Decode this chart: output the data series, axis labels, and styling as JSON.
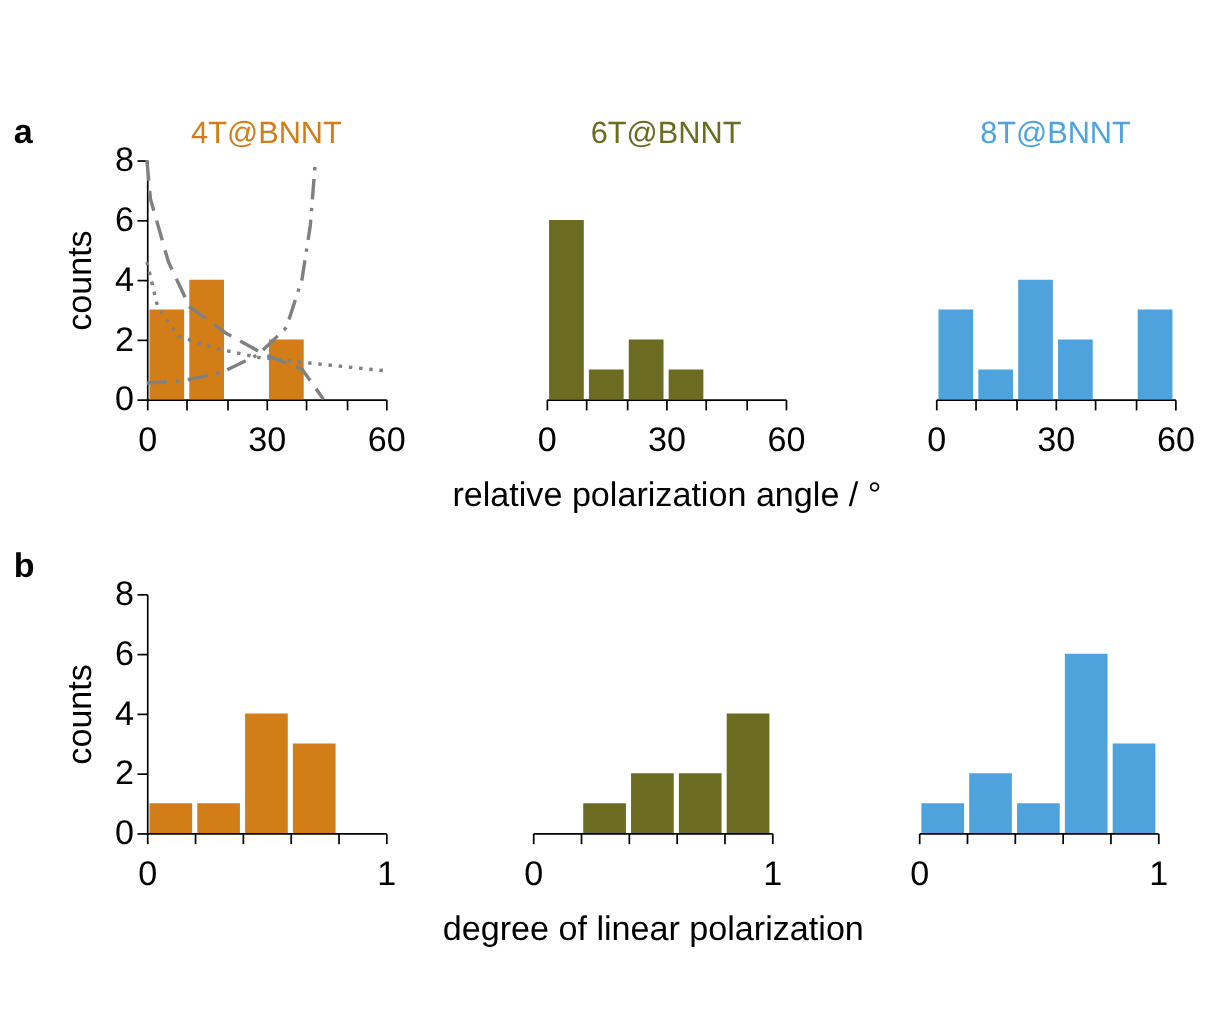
{
  "chart_data": [
    {
      "type": "histogram",
      "title": "4T@BNNT",
      "ylabel": "counts",
      "annotations": [
        "a"
      ],
      "bins": [
        0,
        10,
        20,
        30,
        40,
        50,
        60
      ],
      "xlim": [
        0,
        60
      ],
      "xticks": [
        0,
        {
          "value": 10,
          "label": null
        },
        {
          "value": 20,
          "label": null
        },
        30,
        {
          "value": 40,
          "label": null
        },
        {
          "value": 50,
          "label": null
        },
        60
      ],
      "ylim": [
        0,
        8
      ],
      "yticks": [
        0,
        2,
        4,
        6,
        8
      ],
      "grid": false,
      "legend": false,
      "series": [
        {
          "type": "histogram",
          "color": "#d37d19",
          "values": [
            3,
            4,
            0,
            2,
            0,
            0
          ]
        },
        {
          "type": "line",
          "color": "#808080",
          "line_style": "dashed",
          "x": [
            0,
            0.9,
            5.4,
            10.7,
            20,
            29.5,
            39,
            44.3
          ],
          "values": [
            8,
            6.7,
            4.6,
            3.1,
            2.2,
            1.5,
            1.0,
            0
          ]
        },
        {
          "type": "line",
          "color": "#808080",
          "line_style": "dotted",
          "x": [
            0,
            2.7,
            8,
            17.4,
            28,
            41.6,
            60
          ],
          "values": [
            4.6,
            3.1,
            2.1,
            1.7,
            1.4,
            1.2,
            0.95
          ]
        },
        {
          "type": "line",
          "color": "#808080",
          "line_style": "dashdot",
          "x": [
            0,
            9.4,
            18.8,
            28,
            35,
            38.9,
            41,
            42.3
          ],
          "values": [
            0.54,
            0.63,
            0.9,
            1.5,
            2.4,
            4.0,
            5.8,
            8
          ]
        }
      ]
    },
    {
      "type": "histogram",
      "title": "6T@BNNT",
      "xlabel": "relative polarization angle / °",
      "bins": [
        0,
        10,
        20,
        30,
        40,
        50,
        60
      ],
      "xlim": [
        0,
        60
      ],
      "xticks": [
        0,
        {
          "value": 10,
          "label": null
        },
        {
          "value": 20,
          "label": null
        },
        30,
        {
          "value": 40,
          "label": null
        },
        {
          "value": 50,
          "label": null
        },
        60
      ],
      "ylim": [
        0,
        8
      ],
      "tick_labels": "x",
      "grid": false,
      "legend": false,
      "series": [
        {
          "type": "histogram",
          "color": "#6b6b22",
          "values": [
            6,
            1,
            2,
            1,
            0,
            0
          ]
        }
      ]
    },
    {
      "type": "histogram",
      "title": "8T@BNNT",
      "bins": [
        0,
        10,
        20,
        30,
        40,
        50,
        60
      ],
      "xlim": [
        0,
        60
      ],
      "xticks": [
        0,
        {
          "value": 10,
          "label": null
        },
        {
          "value": 20,
          "label": null
        },
        30,
        {
          "value": 40,
          "label": null
        },
        {
          "value": 50,
          "label": null
        },
        60
      ],
      "ylim": [
        0,
        8
      ],
      "tick_labels": "x",
      "grid": false,
      "legend": false,
      "series": [
        {
          "type": "histogram",
          "color": "#4ea3dd",
          "values": [
            3,
            1,
            4,
            2,
            0,
            3
          ]
        }
      ]
    },
    {
      "type": "histogram",
      "ylabel": "counts",
      "annotations": [
        "b"
      ],
      "bins": [
        0,
        0.2,
        0.4,
        0.6,
        0.8,
        1
      ],
      "xlim": [
        0,
        1
      ],
      "xticks": [
        0,
        {
          "value": 0.2,
          "label": null
        },
        {
          "value": 0.4,
          "label": null
        },
        {
          "value": 0.6,
          "label": null
        },
        {
          "value": 0.8,
          "label": null
        },
        1
      ],
      "ylim": [
        0,
        8
      ],
      "yticks": [
        0,
        2,
        4,
        6,
        8
      ],
      "grid": false,
      "legend": false,
      "series": [
        {
          "type": "histogram",
          "color": "#d37d19",
          "values": [
            1,
            1,
            4,
            3,
            0
          ]
        }
      ]
    },
    {
      "type": "histogram",
      "xlabel": "degree of linear polarization",
      "bins": [
        0,
        0.2,
        0.4,
        0.6,
        0.8,
        1
      ],
      "xlim": [
        0,
        1
      ],
      "xticks": [
        0,
        {
          "value": 0.2,
          "label": null
        },
        {
          "value": 0.4,
          "label": null
        },
        {
          "value": 0.6,
          "label": null
        },
        {
          "value": 0.8,
          "label": null
        },
        1
      ],
      "ylim": [
        0,
        8
      ],
      "tick_labels": "x",
      "grid": false,
      "legend": false,
      "series": [
        {
          "type": "histogram",
          "color": "#6b6b22",
          "values": [
            0,
            1,
            2,
            2,
            4
          ]
        }
      ]
    },
    {
      "type": "histogram",
      "bins": [
        0,
        0.2,
        0.4,
        0.6,
        0.8,
        1
      ],
      "xlim": [
        0,
        1
      ],
      "xticks": [
        0,
        {
          "value": 0.2,
          "label": null
        },
        {
          "value": 0.4,
          "label": null
        },
        {
          "value": 0.6,
          "label": null
        },
        {
          "value": 0.8,
          "label": null
        },
        1
      ],
      "ylim": [
        0,
        8
      ],
      "tick_labels": "x",
      "grid": false,
      "legend": false,
      "series": [
        {
          "type": "histogram",
          "color": "#4ea3dd",
          "values": [
            1,
            2,
            1,
            6,
            3
          ]
        }
      ]
    }
  ]
}
